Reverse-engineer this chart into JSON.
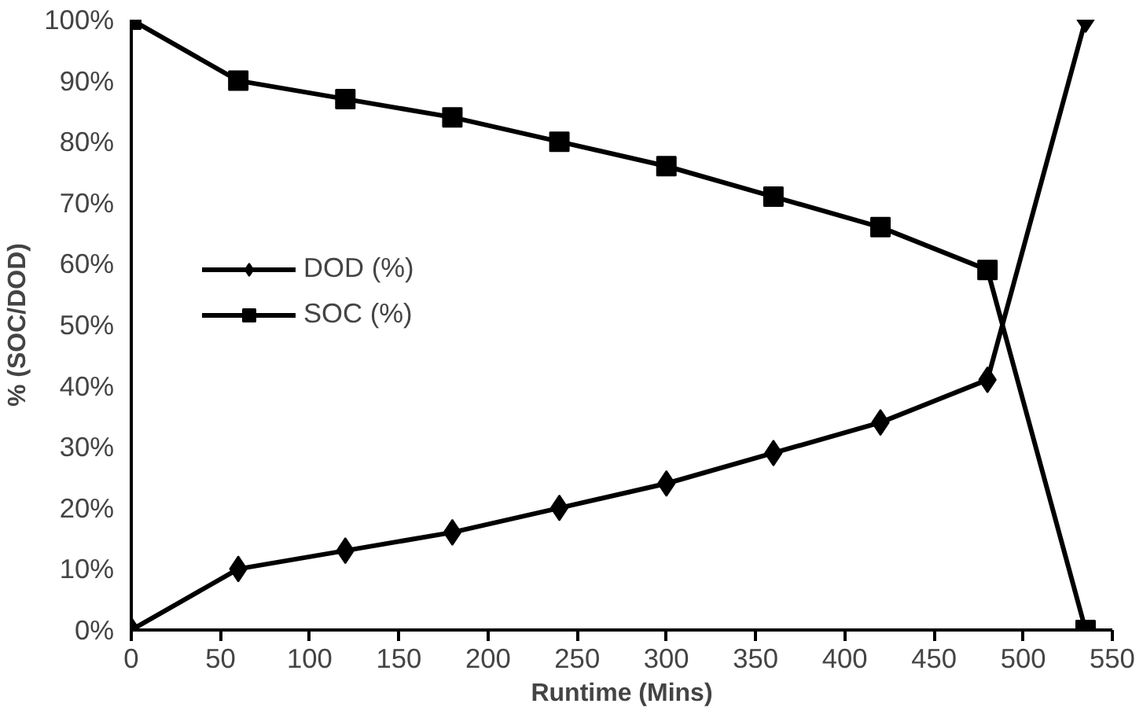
{
  "chart_data": {
    "type": "line",
    "xlabel": "Runtime (Mins)",
    "ylabel": "% (SOC/DOD)",
    "x": [
      0,
      60,
      120,
      180,
      240,
      300,
      360,
      420,
      480,
      535
    ],
    "series": [
      {
        "name": "DOD (%)",
        "color": "#000000",
        "marker": "diamond",
        "values": [
          0,
          10,
          13,
          16,
          20,
          24,
          29,
          34,
          41,
          100
        ]
      },
      {
        "name": "SOC (%)",
        "color": "#000000",
        "marker": "square",
        "values": [
          100,
          90,
          87,
          84,
          80,
          76,
          71,
          66,
          59,
          0
        ]
      }
    ],
    "xlim": [
      0,
      550
    ],
    "xticks": [
      0,
      50,
      100,
      150,
      200,
      250,
      300,
      350,
      400,
      450,
      500,
      550
    ],
    "ylim": [
      0,
      100
    ],
    "yticks": [
      {
        "value": 0,
        "label": "0%"
      },
      {
        "value": 10,
        "label": "10%"
      },
      {
        "value": 20,
        "label": "20%"
      },
      {
        "value": 30,
        "label": "30%"
      },
      {
        "value": 40,
        "label": "40%"
      },
      {
        "value": 50,
        "label": "50%"
      },
      {
        "value": 60,
        "label": "60%"
      },
      {
        "value": 70,
        "label": "70%"
      },
      {
        "value": 80,
        "label": "80%"
      },
      {
        "value": 90,
        "label": "90%"
      },
      {
        "value": 100,
        "label": "100%"
      }
    ],
    "grid": false,
    "legend": "left",
    "line_style": "solid"
  }
}
